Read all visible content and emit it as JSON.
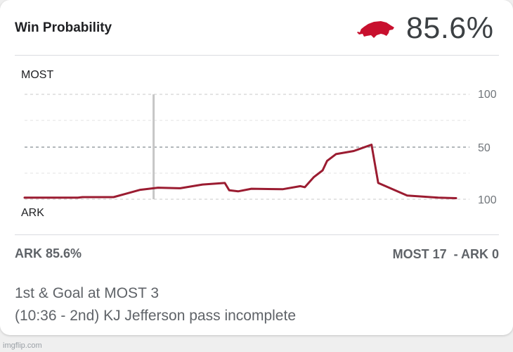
{
  "header": {
    "title": "Win Probability",
    "logo_icon": "razorback-hog-icon",
    "probability": "85.6%"
  },
  "chart": {
    "team_top": "MOST",
    "team_bottom": "ARK",
    "tick_top": "100",
    "tick_mid": "50",
    "tick_bottom": "100"
  },
  "chart_data": {
    "type": "line",
    "title": "",
    "xlabel": "",
    "ylabel": "",
    "ylim": [
      -100,
      100
    ],
    "yticks": [
      "100",
      "50",
      "100"
    ],
    "grid": true,
    "marker_x": 0.29,
    "series": [
      {
        "color": "#9b1c31",
        "points": [
          [
            0.0,
            -97
          ],
          [
            0.12,
            -97
          ],
          [
            0.13,
            -96
          ],
          [
            0.2,
            -96
          ],
          [
            0.23,
            -89
          ],
          [
            0.26,
            -82
          ],
          [
            0.3,
            -78
          ],
          [
            0.35,
            -79
          ],
          [
            0.4,
            -72
          ],
          [
            0.45,
            -69
          ],
          [
            0.46,
            -83
          ],
          [
            0.48,
            -85
          ],
          [
            0.51,
            -80
          ],
          [
            0.58,
            -81
          ],
          [
            0.62,
            -75
          ],
          [
            0.63,
            -77
          ],
          [
            0.65,
            -58
          ],
          [
            0.67,
            -45
          ],
          [
            0.68,
            -27
          ],
          [
            0.7,
            -14
          ],
          [
            0.74,
            -8
          ],
          [
            0.78,
            4
          ],
          [
            0.795,
            -69
          ],
          [
            0.86,
            -93
          ],
          [
            0.93,
            -97
          ],
          [
            0.97,
            -98
          ]
        ]
      }
    ]
  },
  "summary": {
    "ark_prob": "ARK 85.6%",
    "score": "MOST 17  - ARK 0"
  },
  "play": {
    "line1": "1st & Goal at MOST 3",
    "line2": "(10:36 - 2nd) KJ Jefferson pass incomplete"
  },
  "watermark": "imgflip.com"
}
